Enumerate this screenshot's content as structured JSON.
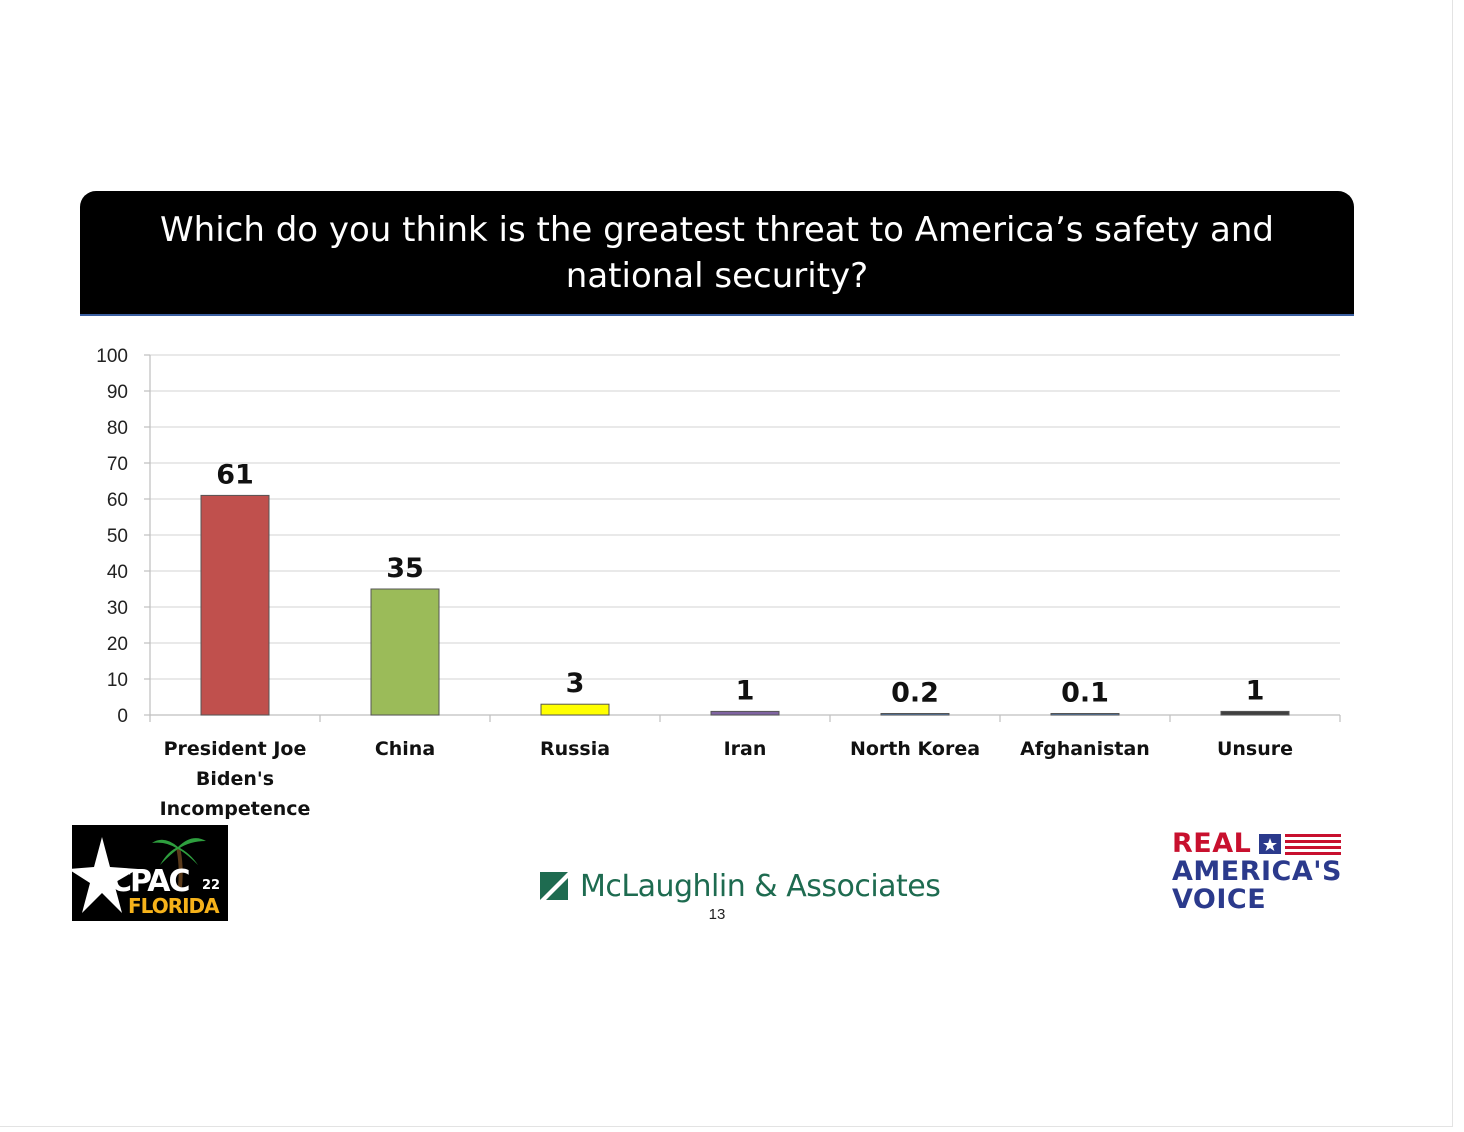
{
  "title": "Which do you think is the greatest threat to America’s safety and national security?",
  "chart_data": {
    "type": "bar",
    "categories": [
      "President Joe Biden's Incompetence",
      "China",
      "Russia",
      "Iran",
      "North Korea",
      "Afghanistan",
      "Unsure"
    ],
    "category_lines": [
      [
        "President Joe",
        "Biden's",
        "Incompetence"
      ],
      [
        "China"
      ],
      [
        "Russia"
      ],
      [
        "Iran"
      ],
      [
        "North Korea"
      ],
      [
        "Afghanistan"
      ],
      [
        "Unsure"
      ]
    ],
    "values": [
      61,
      35,
      3,
      1,
      0.2,
      0.1,
      1
    ],
    "value_labels": [
      "61",
      "35",
      "3",
      "1",
      "0.2",
      "0.1",
      "1"
    ],
    "colors": [
      "#c0504d",
      "#9bbb59",
      "#ffff00",
      "#8064a2",
      "#4f81bd",
      "#4f81bd",
      "#404040"
    ],
    "ylim": [
      0,
      100
    ],
    "yticks": [
      0,
      10,
      20,
      30,
      40,
      50,
      60,
      70,
      80,
      90,
      100
    ],
    "grid": true,
    "xlabel": "",
    "ylabel": ""
  },
  "footer": {
    "cpac_logo": {
      "main": "CPAC",
      "number": "22",
      "sub": "FLORIDA"
    },
    "mclaughlin_logo": "McLaughlin & Associates",
    "page_number": "13",
    "rav_logo": {
      "line1": "REAL",
      "line2": "AMERICA'S",
      "line3": "VOICE"
    }
  },
  "colors": {
    "title_banner": "#000000",
    "mclaughlin_green": "#1e6b50",
    "rav_red": "#c8102e",
    "rav_navy": "#2b3a8c"
  }
}
